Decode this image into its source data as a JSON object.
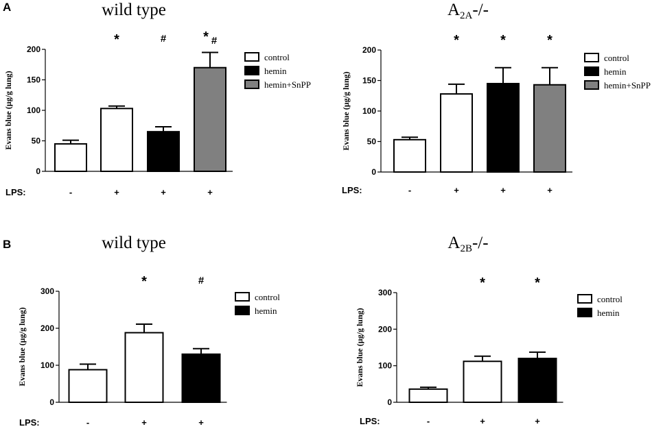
{
  "panels": [
    {
      "letter": "A",
      "title_main": "wild type",
      "title_sub": "",
      "title_end": ""
    },
    {
      "letter": "",
      "title_main": "A",
      "title_sub": "2A",
      "title_end": "-/-"
    },
    {
      "letter": "B",
      "title_main": "wild type",
      "title_sub": "",
      "title_end": ""
    },
    {
      "letter": "",
      "title_main": "A",
      "title_sub": "2B",
      "title_end": "-/-"
    }
  ],
  "colors": {
    "control": "#ffffff",
    "hemin": "#000000",
    "hemin+SnPP": "#808080"
  },
  "chart_data": [
    {
      "type": "bar",
      "panel": "A",
      "title": "wild type",
      "ylabel": "Evans blue (µg/g lung)",
      "xlabel": "LPS:",
      "ylim": [
        0,
        200
      ],
      "yticks": [
        0,
        50,
        100,
        150,
        200
      ],
      "grid": false,
      "legend": {
        "entries": [
          "control",
          "hemin",
          "hemin+SnPP"
        ],
        "position": "top-right"
      },
      "bars": [
        {
          "lps": "-",
          "group": "control",
          "value": 45,
          "error": 6,
          "annotation": ""
        },
        {
          "lps": "+",
          "group": "control",
          "value": 103,
          "error": 4,
          "annotation": "*"
        },
        {
          "lps": "+",
          "group": "hemin",
          "value": 65,
          "error": 8,
          "annotation": "#"
        },
        {
          "lps": "+",
          "group": "hemin+SnPP",
          "value": 170,
          "error": 25,
          "annotation": "*#"
        }
      ]
    },
    {
      "type": "bar",
      "panel": "A",
      "title": "A2A-/-",
      "ylabel": "Evans blue (µg/g lung)",
      "xlabel": "LPS:",
      "ylim": [
        0,
        200
      ],
      "yticks": [
        0,
        50,
        100,
        150,
        200
      ],
      "grid": false,
      "legend": {
        "entries": [
          "control",
          "hemin",
          "hemin+SnPP"
        ],
        "position": "top-right"
      },
      "bars": [
        {
          "lps": "-",
          "group": "control",
          "value": 53,
          "error": 4,
          "annotation": ""
        },
        {
          "lps": "+",
          "group": "control",
          "value": 128,
          "error": 16,
          "annotation": "*"
        },
        {
          "lps": "+",
          "group": "hemin",
          "value": 145,
          "error": 26,
          "annotation": "*"
        },
        {
          "lps": "+",
          "group": "hemin+SnPP",
          "value": 143,
          "error": 28,
          "annotation": "*"
        }
      ]
    },
    {
      "type": "bar",
      "panel": "B",
      "title": "wild type",
      "ylabel": "Evans blue (µg/g lung)",
      "xlabel": "LPS:",
      "ylim": [
        0,
        300
      ],
      "yticks": [
        0,
        100,
        200,
        300
      ],
      "grid": false,
      "legend": {
        "entries": [
          "control",
          "hemin"
        ],
        "position": "top-right"
      },
      "bars": [
        {
          "lps": "-",
          "group": "control",
          "value": 88,
          "error": 15,
          "annotation": ""
        },
        {
          "lps": "+",
          "group": "control",
          "value": 188,
          "error": 23,
          "annotation": "*"
        },
        {
          "lps": "+",
          "group": "hemin",
          "value": 130,
          "error": 15,
          "annotation": "#"
        }
      ]
    },
    {
      "type": "bar",
      "panel": "B",
      "title": "A2B-/-",
      "ylabel": "Evans blue (µg/g lung)",
      "xlabel": "LPS:",
      "ylim": [
        0,
        300
      ],
      "yticks": [
        0,
        100,
        200,
        300
      ],
      "grid": false,
      "legend": {
        "entries": [
          "control",
          "hemin"
        ],
        "position": "top-right"
      },
      "bars": [
        {
          "lps": "-",
          "group": "control",
          "value": 36,
          "error": 5,
          "annotation": ""
        },
        {
          "lps": "+",
          "group": "control",
          "value": 112,
          "error": 14,
          "annotation": "*"
        },
        {
          "lps": "+",
          "group": "hemin",
          "value": 120,
          "error": 17,
          "annotation": "*"
        }
      ]
    }
  ]
}
